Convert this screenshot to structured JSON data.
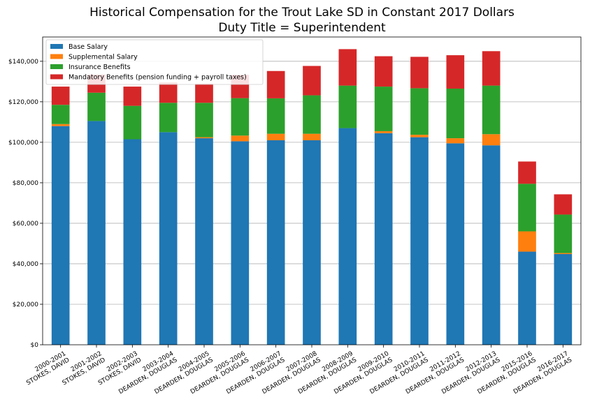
{
  "chart_data": {
    "type": "bar",
    "stacked": true,
    "title": "Historical Compensation for the Trout Lake SD in Constant 2017 Dollars",
    "subtitle": "Duty Title = Superintendent",
    "xlabel": "",
    "ylabel": "",
    "ylim": [
      0,
      152000
    ],
    "yticks": [
      0,
      20000,
      40000,
      60000,
      80000,
      100000,
      120000,
      140000
    ],
    "ytick_labels": [
      "$0",
      "$20,000",
      "$40,000",
      "$60,000",
      "$80,000",
      "$100,000",
      "$120,000",
      "$140,000"
    ],
    "grid": "horizontal",
    "legend_position": "top-left",
    "categories": [
      "2000-2001\nSTOKES, DAVID",
      "2001-2002\nSTOKES, DAVID",
      "2002-2003\nSTOKES, DAVID",
      "2003-2004\nDEARDEN, DOUGLAS",
      "2004-2005\nDEARDEN, DOUGLAS",
      "2005-2006\nDEARDEN, DOUGLAS",
      "2006-2007\nDEARDEN, DOUGLAS",
      "2007-2008\nDEARDEN, DOUGLAS",
      "2008-2009\nDEARDEN, DOUGLAS",
      "2009-2010\nDEARDEN, DOUGLAS",
      "2010-2011\nDEARDEN, DOUGLAS",
      "2011-2012\nDEARDEN, DOUGLAS",
      "2012-2013\nDEARDEN, DOUGLAS",
      "2015-2016\nDEARDEN, DOUGLAS",
      "2016-2017\nDEARDEN, DOUGLAS"
    ],
    "series": [
      {
        "name": "Base Salary",
        "color": "#1f77b4",
        "values": [
          108000,
          110500,
          101500,
          105000,
          102000,
          100500,
          101000,
          101000,
          107000,
          104500,
          102500,
          99500,
          98500,
          46000,
          44800
        ]
      },
      {
        "name": "Supplemental Salary",
        "color": "#ff7f0e",
        "values": [
          1000,
          0,
          0,
          0,
          500,
          2800,
          3200,
          3200,
          0,
          1000,
          1200,
          2500,
          5500,
          10000,
          500
        ]
      },
      {
        "name": "Insurance Benefits",
        "color": "#2ca02c",
        "values": [
          9500,
          14000,
          16500,
          14500,
          17000,
          18500,
          17500,
          19000,
          21000,
          22000,
          23000,
          24500,
          24000,
          23500,
          19000
        ]
      },
      {
        "name": "Mandatory Benefits (pension funding + payroll taxes)",
        "color": "#d62728",
        "values": [
          9000,
          9000,
          9500,
          10000,
          9500,
          11500,
          13500,
          14500,
          18000,
          15000,
          15500,
          16500,
          17000,
          11000,
          10000
        ]
      }
    ]
  }
}
